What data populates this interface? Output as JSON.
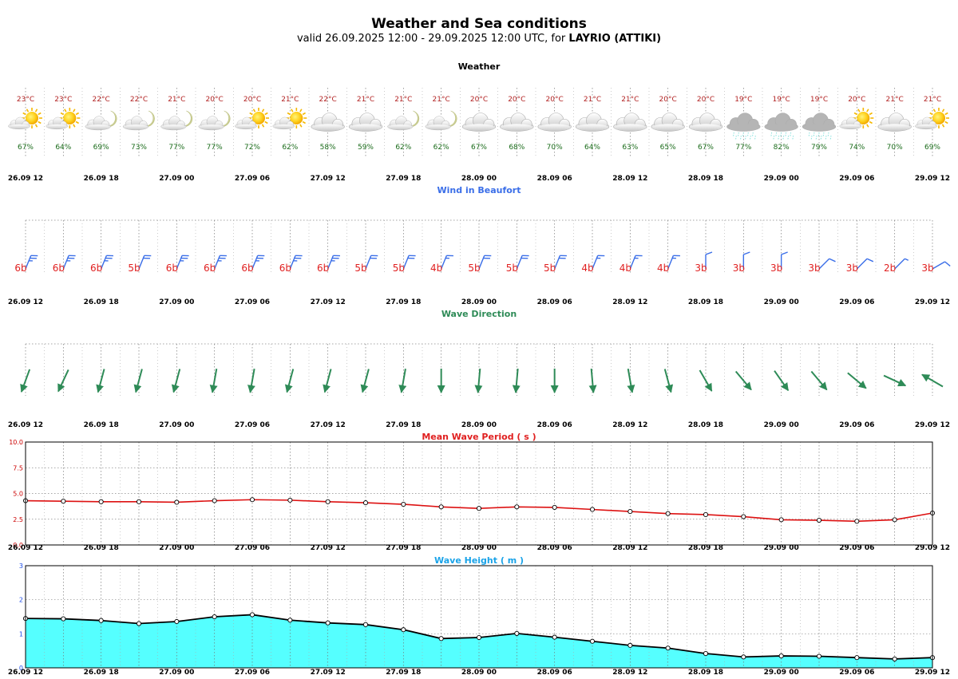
{
  "header": {
    "title": "Weather and Sea conditions",
    "subtitle_prefix": "valid 26.09.2025 12:00 - 29.09.2025 12:00 UTC, for ",
    "location": "LAYRIO (ATTIKI)"
  },
  "colors": {
    "temperature": "#b22222",
    "humidity": "#1a6b1a",
    "wind_title": "#3a6ee8",
    "wind_barb": "#3a6ee8",
    "beaufort_number": "#e02020",
    "wave_direction": "#2e8b57",
    "period_title": "#e02020",
    "period_line": "#dd1111",
    "height_title": "#1aa3e8",
    "height_fill": "#55ffff",
    "height_line": "#000000"
  },
  "time_axis_labels": [
    "26.09 12",
    "26.09 18",
    "27.09 00",
    "27.09 06",
    "27.09 12",
    "27.09 18",
    "28.09 00",
    "28.09 06",
    "28.09 12",
    "28.09 18",
    "29.09 00",
    "29.09 06",
    "29.09 12"
  ],
  "chart_data": [
    {
      "type": "table",
      "title": "Weather",
      "temperature_c": [
        "23°C",
        "23°C",
        "22°C",
        "22°C",
        "21°C",
        "20°C",
        "20°C",
        "21°C",
        "22°C",
        "21°C",
        "21°C",
        "21°C",
        "20°C",
        "20°C",
        "20°C",
        "21°C",
        "21°C",
        "20°C",
        "20°C",
        "19°C",
        "19°C",
        "19°C",
        "20°C",
        "21°C",
        "21°C"
      ],
      "humidity_pct": [
        "67%",
        "64%",
        "69%",
        "73%",
        "77%",
        "77%",
        "72%",
        "62%",
        "58%",
        "59%",
        "62%",
        "62%",
        "67%",
        "68%",
        "70%",
        "64%",
        "63%",
        "65%",
        "67%",
        "77%",
        "82%",
        "79%",
        "74%",
        "70%",
        "69%"
      ],
      "conditions": [
        "sun-cloud-icon",
        "sun-cloud-icon",
        "moon-cloud-icon",
        "moon-cloud-icon",
        "moon-cloud-icon",
        "moon-cloud-icon",
        "sun-cloud-icon",
        "sun-cloud-icon",
        "cloud-icon",
        "cloud-icon",
        "moon-cloud-icon",
        "moon-cloud-icon",
        "cloud-icon",
        "cloud-icon",
        "cloud-icon",
        "cloud-icon",
        "cloud-icon",
        "cloud-icon",
        "cloud-icon",
        "rain-cloud-icon",
        "rain-cloud-icon",
        "rain-cloud-icon",
        "sun-cloud-icon",
        "cloud-icon",
        "sun-cloud-icon"
      ]
    },
    {
      "type": "table",
      "title": "Wind in Beaufort",
      "beaufort": [
        "6b",
        "6b",
        "6b",
        "5b",
        "6b",
        "6b",
        "6b",
        "6b",
        "6b",
        "5b",
        "5b",
        "4b",
        "5b",
        "5b",
        "5b",
        "4b",
        "4b",
        "4b",
        "3b",
        "3b",
        "3b",
        "3b",
        "3b",
        "2b",
        "3b"
      ],
      "direction_from_deg": [
        22,
        22,
        22,
        22,
        22,
        22,
        22,
        22,
        22,
        22,
        22,
        22,
        22,
        22,
        22,
        22,
        22,
        22,
        0,
        0,
        0,
        45,
        45,
        45,
        60
      ]
    },
    {
      "type": "table",
      "title": "Wave Direction",
      "direction_to_deg": [
        200,
        205,
        195,
        195,
        195,
        190,
        190,
        195,
        195,
        195,
        190,
        180,
        185,
        185,
        180,
        175,
        170,
        165,
        150,
        140,
        145,
        140,
        130,
        115,
        300
      ]
    },
    {
      "type": "line",
      "title": "Mean Wave Period ( s )",
      "ylim": [
        0.0,
        10.0
      ],
      "yticks": [
        "0.0",
        "2.5",
        "5.0",
        "7.5",
        "10.0"
      ],
      "series": [
        {
          "values": [
            4.3,
            4.25,
            4.2,
            4.2,
            4.15,
            4.3,
            4.4,
            4.35,
            4.2,
            4.1,
            3.95,
            3.7,
            3.55,
            3.7,
            3.65,
            3.45,
            3.25,
            3.05,
            2.95,
            2.75,
            2.45,
            2.4,
            2.3,
            2.45,
            3.1
          ]
        }
      ]
    },
    {
      "type": "area",
      "title": "Wave Height ( m )",
      "ylim": [
        0,
        3
      ],
      "yticks": [
        "0",
        "1",
        "2",
        "3"
      ],
      "series": [
        {
          "values": [
            1.45,
            1.44,
            1.39,
            1.3,
            1.36,
            1.5,
            1.56,
            1.4,
            1.32,
            1.27,
            1.12,
            0.86,
            0.89,
            1.01,
            0.9,
            0.78,
            0.66,
            0.58,
            0.42,
            0.32,
            0.35,
            0.34,
            0.3,
            0.26,
            0.3
          ]
        }
      ]
    }
  ]
}
